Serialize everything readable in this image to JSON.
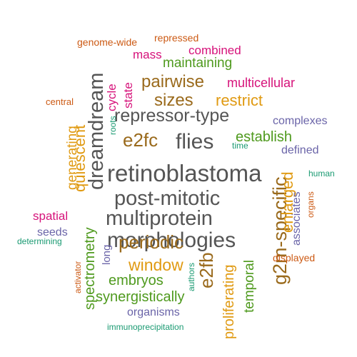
{
  "colors": {
    "gray": "#555555",
    "brown": "#9a6a1c",
    "green": "#4f9a1e",
    "orange": "#e09a12",
    "magenta": "#d6127a",
    "purple": "#6a64a8",
    "teal": "#1a9a72",
    "rust": "#cc5a14"
  },
  "words": [
    {
      "text": "retinoblastoma",
      "color": "gray",
      "rotated": false
    },
    {
      "text": "post-mitotic",
      "color": "gray",
      "rotated": false
    },
    {
      "text": "multiprotein",
      "color": "gray",
      "rotated": false
    },
    {
      "text": "morphologies",
      "color": "gray",
      "rotated": false
    },
    {
      "text": "repressor-type",
      "color": "gray",
      "rotated": false
    },
    {
      "text": "dreamdream",
      "color": "gray",
      "rotated": true
    },
    {
      "text": "flies",
      "color": "gray",
      "rotated": false
    },
    {
      "text": "g2m-specific",
      "color": "brown",
      "rotated": true
    },
    {
      "text": "pairwise",
      "color": "brown",
      "rotated": false
    },
    {
      "text": "sizes",
      "color": "brown",
      "rotated": false
    },
    {
      "text": "e2fc",
      "color": "brown",
      "rotated": false
    },
    {
      "text": "periodic",
      "color": "brown",
      "rotated": false
    },
    {
      "text": "e2fb",
      "color": "brown",
      "rotated": true
    },
    {
      "text": "restrict",
      "color": "orange",
      "rotated": false
    },
    {
      "text": "window",
      "color": "orange",
      "rotated": false
    },
    {
      "text": "quiescent",
      "color": "orange",
      "rotated": true
    },
    {
      "text": "enlarged",
      "color": "orange",
      "rotated": true
    },
    {
      "text": "proliferating",
      "color": "orange",
      "rotated": true
    },
    {
      "text": "generating",
      "color": "orange",
      "rotated": true
    },
    {
      "text": "establish",
      "color": "green",
      "rotated": false
    },
    {
      "text": "maintaining",
      "color": "green",
      "rotated": false
    },
    {
      "text": "embryos",
      "color": "green",
      "rotated": false
    },
    {
      "text": "synergistically",
      "color": "green",
      "rotated": false
    },
    {
      "text": "spectrometry",
      "color": "green",
      "rotated": true
    },
    {
      "text": "temporal",
      "color": "green",
      "rotated": true
    },
    {
      "text": "combined",
      "color": "magenta",
      "rotated": false
    },
    {
      "text": "mass",
      "color": "magenta",
      "rotated": false
    },
    {
      "text": "multicellular",
      "color": "magenta",
      "rotated": false
    },
    {
      "text": "spatial",
      "color": "magenta",
      "rotated": false
    },
    {
      "text": "cycle",
      "color": "magenta",
      "rotated": true
    },
    {
      "text": "state",
      "color": "magenta",
      "rotated": true
    },
    {
      "text": "complexes",
      "color": "purple",
      "rotated": false
    },
    {
      "text": "defined",
      "color": "purple",
      "rotated": false
    },
    {
      "text": "associates",
      "color": "purple",
      "rotated": true
    },
    {
      "text": "organisms",
      "color": "purple",
      "rotated": false
    },
    {
      "text": "seeds",
      "color": "purple",
      "rotated": false
    },
    {
      "text": "long",
      "color": "purple",
      "rotated": true
    },
    {
      "text": "human",
      "color": "teal",
      "rotated": false
    },
    {
      "text": "time",
      "color": "teal",
      "rotated": false
    },
    {
      "text": "roots",
      "color": "teal",
      "rotated": true
    },
    {
      "text": "determining",
      "color": "teal",
      "rotated": false
    },
    {
      "text": "authors",
      "color": "teal",
      "rotated": true
    },
    {
      "text": "immunoprecipitation",
      "color": "teal",
      "rotated": false
    },
    {
      "text": "genome-wide",
      "color": "rust",
      "rotated": false
    },
    {
      "text": "repressed",
      "color": "rust",
      "rotated": false
    },
    {
      "text": "central",
      "color": "rust",
      "rotated": false
    },
    {
      "text": "displayed",
      "color": "rust",
      "rotated": false
    },
    {
      "text": "organs",
      "color": "rust",
      "rotated": true
    },
    {
      "text": "activator",
      "color": "rust",
      "rotated": true
    }
  ]
}
